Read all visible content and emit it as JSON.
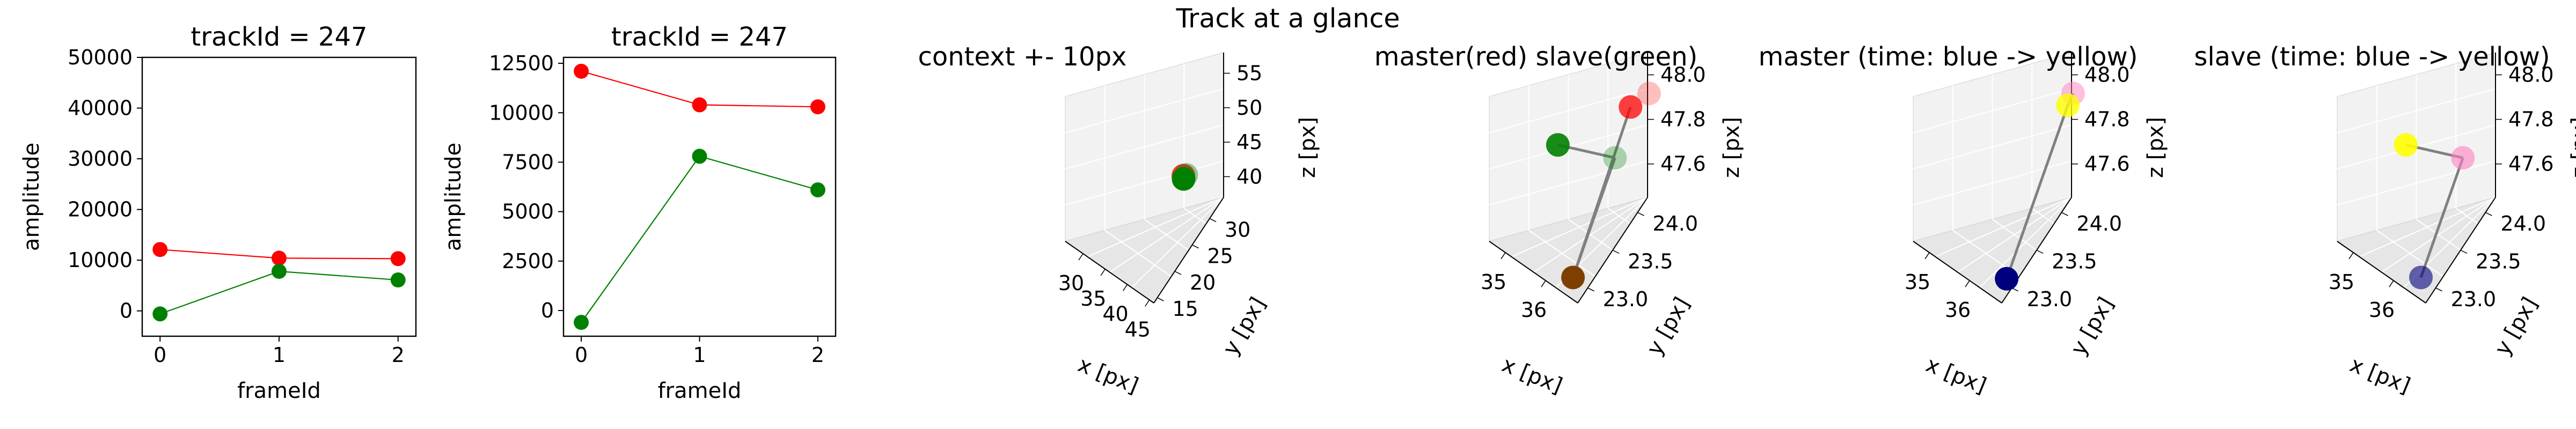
{
  "suptitle": "Track at a glance",
  "colors": {
    "red": "#ff0000",
    "green": "#008000",
    "line": "#808080",
    "frame_blue": "#00007f",
    "frame_brown": "#7f3f00",
    "frame_yellow": "#ffff00"
  },
  "chart_data": [
    {
      "type": "line",
      "title": "trackId = 247",
      "xlabel": "frameId",
      "ylabel": "amplitude",
      "x": [
        0,
        1,
        2
      ],
      "xticks": [
        "0",
        "1",
        "2"
      ],
      "ylim": [
        -5000,
        50000
      ],
      "yticks": [
        "0",
        "10000",
        "20000",
        "30000",
        "40000",
        "50000"
      ],
      "series": [
        {
          "color": "#ff0000",
          "values": [
            12100,
            10400,
            10300
          ]
        },
        {
          "color": "#008000",
          "values": [
            -600,
            7800,
            6100
          ]
        }
      ]
    },
    {
      "type": "line",
      "title": "trackId = 247",
      "xlabel": "frameId",
      "ylabel": "amplitude",
      "x": [
        0,
        1,
        2
      ],
      "xticks": [
        "0",
        "1",
        "2"
      ],
      "ylim": [
        -1300,
        12800
      ],
      "yticks": [
        "0",
        "2500",
        "5000",
        "7500",
        "10000",
        "12500"
      ],
      "series": [
        {
          "color": "#ff0000",
          "values": [
            12100,
            10400,
            10300
          ]
        },
        {
          "color": "#008000",
          "values": [
            -600,
            7800,
            6100
          ]
        }
      ]
    },
    {
      "type": "scatter",
      "projection": "3d",
      "title": "context +- 10px",
      "xlabel": "x [px]",
      "ylabel": "y [px]",
      "zlabel": "z [px]",
      "xlim": [
        26,
        46
      ],
      "ylim": [
        14,
        34
      ],
      "zlim": [
        37,
        58
      ],
      "xticks": [
        "30",
        "35",
        "40",
        "45"
      ],
      "yticks": [
        "15",
        "20",
        "25",
        "30"
      ],
      "zticks": [
        "40",
        "45",
        "50",
        "55"
      ],
      "points": [
        {
          "x": 35.5,
          "y": 23.6,
          "z": 47.7,
          "color": "#ff0000",
          "alpha": 0.8
        },
        {
          "x": 35.8,
          "y": 23.8,
          "z": 47.9,
          "color": "#008000",
          "alpha": 0.4
        },
        {
          "x": 36.1,
          "y": 23.3,
          "z": 47.6,
          "color": "#008000",
          "alpha": 1.0
        }
      ]
    },
    {
      "type": "scatter",
      "projection": "3d",
      "title": "master(red) slave(green)",
      "xlabel": "x [px]",
      "ylabel": "y [px]",
      "zlabel": "z [px]",
      "xlim": [
        34.6,
        36.8
      ],
      "ylim": [
        22.8,
        24.2
      ],
      "zlim": [
        47.45,
        48.1
      ],
      "xticks": [
        "35",
        "36"
      ],
      "yticks": [
        "23.0",
        "23.5",
        "24.0"
      ],
      "zticks": [
        "47.6",
        "47.8",
        "48.0"
      ],
      "points": [
        {
          "x": 35.2,
          "y": 24.0,
          "z": 48.02,
          "color": "#ff0000",
          "alpha": 0.25
        },
        {
          "x": 35.3,
          "y": 23.8,
          "z": 48.0,
          "color": "#ff0000",
          "alpha": 0.75
        },
        {
          "x": 36.6,
          "y": 23.2,
          "z": 48.02,
          "color": "#008000",
          "alpha": 0.3
        },
        {
          "x": 34.9,
          "y": 23.3,
          "z": 47.85,
          "color": "#008000",
          "alpha": 0.9
        },
        {
          "x": 36.4,
          "y": 22.9,
          "z": 47.5,
          "color": "#7f3f00",
          "alpha": 1.0
        }
      ]
    },
    {
      "type": "scatter",
      "projection": "3d",
      "title": "master (time: blue -> yellow)",
      "xlabel": "x [px]",
      "ylabel": "y [px]",
      "zlabel": "z [px]",
      "xlim": [
        34.6,
        36.8
      ],
      "ylim": [
        22.8,
        24.2
      ],
      "zlim": [
        47.45,
        48.1
      ],
      "xticks": [
        "35",
        "36"
      ],
      "yticks": [
        "23.0",
        "23.5",
        "24.0"
      ],
      "zticks": [
        "47.6",
        "47.8",
        "48.0"
      ],
      "points": [
        {
          "x": 35.2,
          "y": 24.0,
          "z": 48.02,
          "color": "#ff7fbf",
          "alpha": 0.5
        },
        {
          "x": 35.35,
          "y": 23.9,
          "z": 48.0,
          "color": "#ffff00",
          "alpha": 0.8
        },
        {
          "x": 36.5,
          "y": 22.95,
          "z": 47.5,
          "color": "#00007f",
          "alpha": 1.0
        }
      ]
    },
    {
      "type": "scatter",
      "projection": "3d",
      "title": "slave (time: blue -> yellow)",
      "xlabel": "x [px]",
      "ylabel": "y [px]",
      "zlabel": "z [px]",
      "xlim": [
        34.6,
        36.8
      ],
      "ylim": [
        22.8,
        24.2
      ],
      "zlim": [
        47.45,
        48.1
      ],
      "xticks": [
        "35",
        "36"
      ],
      "yticks": [
        "23.0",
        "23.5",
        "24.0"
      ],
      "zticks": [
        "47.6",
        "47.8",
        "48.0"
      ],
      "points": [
        {
          "x": 36.6,
          "y": 23.2,
          "z": 48.02,
          "color": "#ff7fbf",
          "alpha": 0.6
        },
        {
          "x": 34.9,
          "y": 23.3,
          "z": 47.85,
          "color": "#ffff00",
          "alpha": 0.9
        },
        {
          "x": 36.4,
          "y": 22.9,
          "z": 47.5,
          "color": "#00007f",
          "alpha": 0.6
        }
      ]
    }
  ]
}
